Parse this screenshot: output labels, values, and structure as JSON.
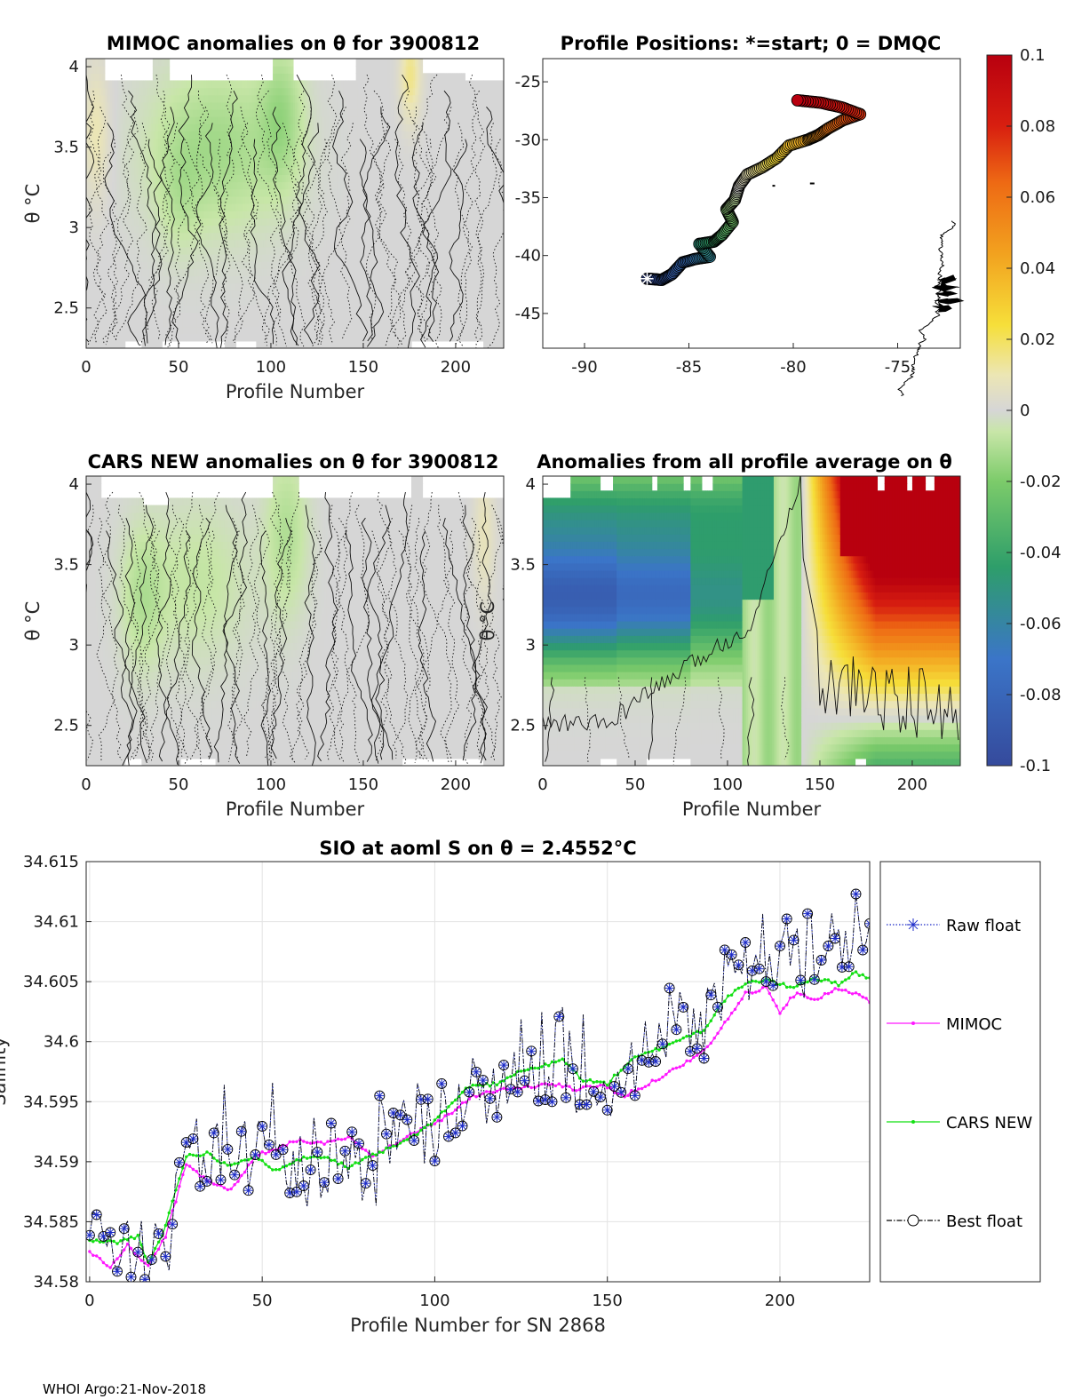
{
  "figure": {
    "footer": "WHOI Argo:21-Nov-2018"
  },
  "colors": {
    "mask": "#d6d6d6",
    "raw": "#1c2bc8",
    "mimoc": "#ff18ff",
    "cars": "#12e012",
    "best": "#000000",
    "grid": "#e3e3e3"
  },
  "chart_data": [
    {
      "id": "mimoc",
      "type": "heatmap",
      "title": "MIMOC anomalies on θ  for 3900812",
      "xlabel": "Profile Number",
      "ylabel": "θ °C",
      "xlim": [
        0,
        226
      ],
      "ylim": [
        2.25,
        4.05
      ],
      "xticks": [
        "0",
        "50",
        "100",
        "150",
        "200"
      ],
      "yticks": [
        "2.5",
        "3",
        "3.5",
        "4"
      ],
      "anomaly_range": [
        -0.01,
        0.01
      ]
    },
    {
      "id": "positions",
      "type": "scatter",
      "title": "Profile Positions: *=start; 0 = DMQC",
      "xlim": [
        -92,
        -72
      ],
      "ylim": [
        -48,
        -23
      ],
      "xticks": [
        "-90",
        "-85",
        "-80",
        "-75"
      ],
      "yticks": [
        "-25",
        "-30",
        "-35",
        "-40",
        "-45"
      ],
      "track": [
        [
          -87.0,
          -42.0
        ],
        [
          -86.3,
          -42.1
        ],
        [
          -85.8,
          -41.6
        ],
        [
          -85.3,
          -40.6
        ],
        [
          -84.7,
          -40.3
        ],
        [
          -84.0,
          -40.1
        ],
        [
          -84.5,
          -39.0
        ],
        [
          -83.8,
          -38.8
        ],
        [
          -83.4,
          -38.2
        ],
        [
          -82.9,
          -37.1
        ],
        [
          -83.2,
          -36.0
        ],
        [
          -82.8,
          -35.2
        ],
        [
          -82.6,
          -34.0
        ],
        [
          -82.2,
          -33.0
        ],
        [
          -81.5,
          -32.4
        ],
        [
          -80.8,
          -31.6
        ],
        [
          -80.2,
          -30.5
        ],
        [
          -79.3,
          -30.0
        ],
        [
          -78.8,
          -29.6
        ],
        [
          -78.3,
          -29.0
        ],
        [
          -77.6,
          -28.3
        ],
        [
          -76.8,
          -27.8
        ],
        [
          -77.7,
          -27.2
        ],
        [
          -78.7,
          -26.8
        ],
        [
          -79.8,
          -26.6
        ]
      ]
    },
    {
      "id": "cars",
      "type": "heatmap",
      "title": "CARS NEW anomalies on θ for 3900812",
      "xlabel": "Profile Number",
      "ylabel": "θ °C",
      "xlim": [
        0,
        226
      ],
      "ylim": [
        2.25,
        4.05
      ],
      "xticks": [
        "0",
        "50",
        "100",
        "150",
        "200"
      ],
      "yticks": [
        "2.5",
        "3",
        "3.5",
        "4"
      ],
      "anomaly_range": [
        -0.012,
        0.012
      ]
    },
    {
      "id": "avg",
      "type": "heatmap",
      "title": "Anomalies from all profile average on θ",
      "xlabel": "Profile Number",
      "ylabel": "θ °C",
      "xlim": [
        0,
        226
      ],
      "ylim": [
        2.25,
        4.05
      ],
      "xticks": [
        "0",
        "50",
        "100",
        "150",
        "200"
      ],
      "yticks": [
        "2.5",
        "3",
        "3.5",
        "4"
      ],
      "anomaly_range": [
        -0.1,
        0.1
      ]
    },
    {
      "id": "colorbar",
      "type": "colorbar",
      "clim": [
        -0.1,
        0.1
      ],
      "ticks": [
        "0.1",
        "0.08",
        "0.06",
        "0.04",
        "0.02",
        "0",
        "-0.02",
        "-0.04",
        "-0.06",
        "-0.08",
        "-0.1"
      ]
    },
    {
      "id": "salinity",
      "type": "line",
      "title": "SIO at aoml S on θ = 2.4552°C",
      "xlabel": "Profile Number for SN 2868",
      "ylabel": "Salinity",
      "xlim": [
        -1,
        226
      ],
      "ylim": [
        34.58,
        34.615
      ],
      "xticks": [
        "0",
        "50",
        "100",
        "150",
        "200"
      ],
      "yticks": [
        "34.58",
        "34.585",
        "34.59",
        "34.595",
        "34.6",
        "34.605",
        "34.61",
        "34.615"
      ],
      "legend_position": "outside-right",
      "series": [
        {
          "name": "Raw float",
          "color": "#1c2bc8",
          "marker": "asterisk",
          "style": "dotted"
        },
        {
          "name": "MIMOC",
          "color": "#ff18ff",
          "marker": "dot",
          "style": "solid"
        },
        {
          "name": "CARS NEW",
          "color": "#12e012",
          "marker": "dot",
          "style": "solid"
        },
        {
          "name": "Best float",
          "color": "#000000",
          "marker": "circle",
          "style": "dashdot"
        }
      ],
      "trend_anchors": {
        "cars": [
          [
            0,
            34.5834
          ],
          [
            8,
            34.5833
          ],
          [
            14,
            34.5838
          ],
          [
            17,
            34.5815
          ],
          [
            21,
            34.5838
          ],
          [
            28,
            34.5905
          ],
          [
            34,
            34.5907
          ],
          [
            40,
            34.5897
          ],
          [
            48,
            34.5905
          ],
          [
            53,
            34.5892
          ],
          [
            60,
            34.5902
          ],
          [
            68,
            34.5905
          ],
          [
            75,
            34.5895
          ],
          [
            82,
            34.5905
          ],
          [
            90,
            34.5915
          ],
          [
            97,
            34.5927
          ],
          [
            103,
            34.5943
          ],
          [
            110,
            34.5963
          ],
          [
            118,
            34.5965
          ],
          [
            124,
            34.5975
          ],
          [
            132,
            34.598
          ],
          [
            137,
            34.5985
          ],
          [
            143,
            34.5968
          ],
          [
            150,
            34.5965
          ],
          [
            157,
            34.5985
          ],
          [
            164,
            34.5993
          ],
          [
            172,
            34.6003
          ],
          [
            178,
            34.601
          ],
          [
            184,
            34.6035
          ],
          [
            190,
            34.6048
          ],
          [
            196,
            34.6052
          ],
          [
            203,
            34.6045
          ],
          [
            210,
            34.6053
          ],
          [
            217,
            34.6048
          ],
          [
            222,
            34.6058
          ],
          [
            226,
            34.6052
          ]
        ],
        "mimoc": [
          [
            0,
            34.5825
          ],
          [
            6,
            34.5812
          ],
          [
            11,
            34.583
          ],
          [
            17,
            34.5813
          ],
          [
            22,
            34.5838
          ],
          [
            28,
            34.5898
          ],
          [
            34,
            34.5885
          ],
          [
            41,
            34.5876
          ],
          [
            48,
            34.5905
          ],
          [
            55,
            34.5912
          ],
          [
            60,
            34.5918
          ],
          [
            68,
            34.5915
          ],
          [
            75,
            34.592
          ],
          [
            82,
            34.5905
          ],
          [
            90,
            34.5918
          ],
          [
            96,
            34.5927
          ],
          [
            103,
            34.5937
          ],
          [
            111,
            34.5955
          ],
          [
            119,
            34.596
          ],
          [
            127,
            34.5962
          ],
          [
            134,
            34.5965
          ],
          [
            141,
            34.596
          ],
          [
            148,
            34.5964
          ],
          [
            155,
            34.5955
          ],
          [
            162,
            34.5965
          ],
          [
            170,
            34.5978
          ],
          [
            178,
            34.5992
          ],
          [
            184,
            34.6015
          ],
          [
            190,
            34.604
          ],
          [
            196,
            34.6045
          ],
          [
            200,
            34.6025
          ],
          [
            205,
            34.6042
          ],
          [
            210,
            34.6035
          ],
          [
            216,
            34.6043
          ],
          [
            222,
            34.6041
          ],
          [
            226,
            34.6033
          ]
        ]
      }
    }
  ]
}
